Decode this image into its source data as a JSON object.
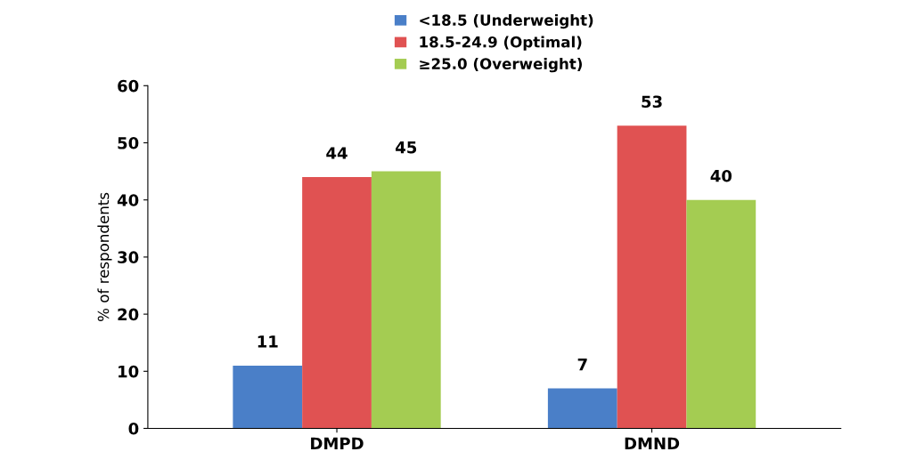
{
  "chart_data": {
    "type": "bar",
    "ylabel": "% of respondents",
    "categories": [
      "DMPD",
      "DMND"
    ],
    "series": [
      {
        "name": "<18.5 (Underweight)",
        "color": "#4a7fc8",
        "values": [
          11,
          7
        ]
      },
      {
        "name": "18.5-24.9 (Optimal)",
        "color": "#e05252",
        "values": [
          44,
          53
        ]
      },
      {
        "name": "≥25.0 (Overweight)",
        "color": "#a4cc52",
        "values": [
          45,
          40
        ]
      }
    ],
    "ylim": [
      0,
      60
    ],
    "yticks": [
      0,
      10,
      20,
      30,
      40,
      50,
      60
    ],
    "grid": false,
    "legend": "top",
    "data_labels": true
  }
}
